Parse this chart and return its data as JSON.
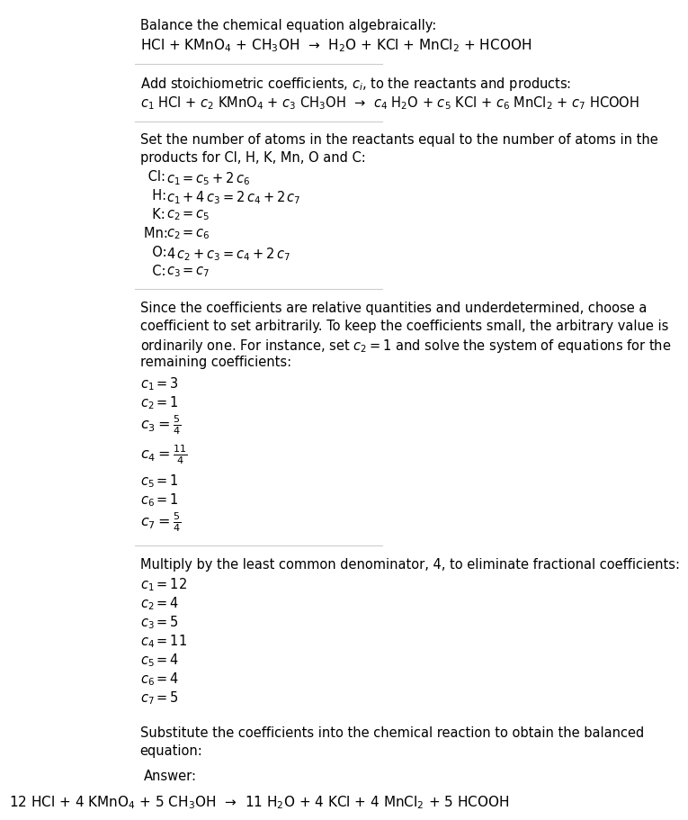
{
  "title_line": "Balance the chemical equation algebraically:",
  "eq1": "HCl + KMnO$_4$ + CH$_3$OH  →  H$_2$O + KCl + MnCl$_2$ + HCOOH",
  "section2_intro": "Add stoichiometric coefficients, $c_i$, to the reactants and products:",
  "eq2": "$c_1$ HCl + $c_2$ KMnO$_4$ + $c_3$ CH$_3$OH  →  $c_4$ H$_2$O + $c_5$ KCl + $c_6$ MnCl$_2$ + $c_7$ HCOOH",
  "section3_intro1": "Set the number of atoms in the reactants equal to the number of atoms in the",
  "section3_intro2": "products for Cl, H, K, Mn, O and C:",
  "atom_equations": [
    [
      " Cl: ",
      "$c_1 = c_5 + 2\\,c_6$"
    ],
    [
      "  H: ",
      "$c_1 + 4\\,c_3 = 2\\,c_4 + 2\\,c_7$"
    ],
    [
      "  K: ",
      "$c_2 = c_5$"
    ],
    [
      "Mn: ",
      "$c_2 = c_6$"
    ],
    [
      "  O: ",
      "$4\\,c_2 + c_3 = c_4 + 2\\,c_7$"
    ],
    [
      "  C: ",
      "$c_3 = c_7$"
    ]
  ],
  "section4_intro_lines": [
    "Since the coefficients are relative quantities and underdetermined, choose a",
    "coefficient to set arbitrarily. To keep the coefficients small, the arbitrary value is",
    "ordinarily one. For instance, set $c_2 = 1$ and solve the system of equations for the",
    "remaining coefficients:"
  ],
  "coeff_initial": [
    [
      "$c_1 = 3$",
      false
    ],
    [
      "$c_2 = 1$",
      false
    ],
    [
      "$c_3 = $",
      true,
      "5",
      "4"
    ],
    [
      "$c_4 = $",
      true,
      "11",
      "4"
    ],
    [
      "$c_5 = 1$",
      false
    ],
    [
      "$c_6 = 1$",
      false
    ],
    [
      "$c_7 = $",
      true,
      "5",
      "4"
    ]
  ],
  "section5_intro": "Multiply by the least common denominator, 4, to eliminate fractional coefficients:",
  "coeff_final": [
    "$c_1 = 12$",
    "$c_2 = 4$",
    "$c_3 = 5$",
    "$c_4 = 11$",
    "$c_5 = 4$",
    "$c_6 = 4$",
    "$c_7 = 5$"
  ],
  "section6_intro_lines": [
    "Substitute the coefficients into the chemical reaction to obtain the balanced",
    "equation:"
  ],
  "answer_label": "Answer:",
  "answer_eq": "12 HCl + 4 KMnO$_4$ + 5 CH$_3$OH  →  11 H$_2$O + 4 KCl + 4 MnCl$_2$ + 5 HCOOH",
  "bg_color": "#ffffff",
  "answer_box_color": "#e8f4f8",
  "answer_box_border": "#a0c8d8",
  "text_color": "#000000",
  "font_size": 10.5,
  "line_separator_color": "#cccccc"
}
